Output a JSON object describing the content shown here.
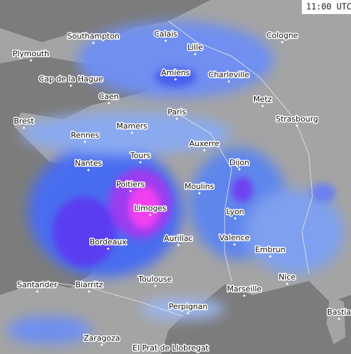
{
  "timestamp": "11:00 UTC",
  "cities": [
    "Southampton",
    "Calais",
    "Cologne",
    "Plymouth",
    "Lille",
    "Amiens",
    "Charleville",
    "Cap de la Hague",
    "Caen",
    "Metz",
    "Paris",
    "Strasbourg",
    "Brest",
    "Mamers",
    "Rennes",
    "Auxerre",
    "Tours",
    "Nantes",
    "Dijon",
    "Poitiers",
    "Moulins",
    "Limoges",
    "Lyon",
    "Aurillac",
    "Valence",
    "Bordeaux",
    "Embrun",
    "Nice",
    "Toulouse",
    "Santander",
    "Biarritz",
    "Marseille",
    "Bastia",
    "Perpignan",
    "Zaragoza",
    "El Prat de Llobregat"
  ]
}
